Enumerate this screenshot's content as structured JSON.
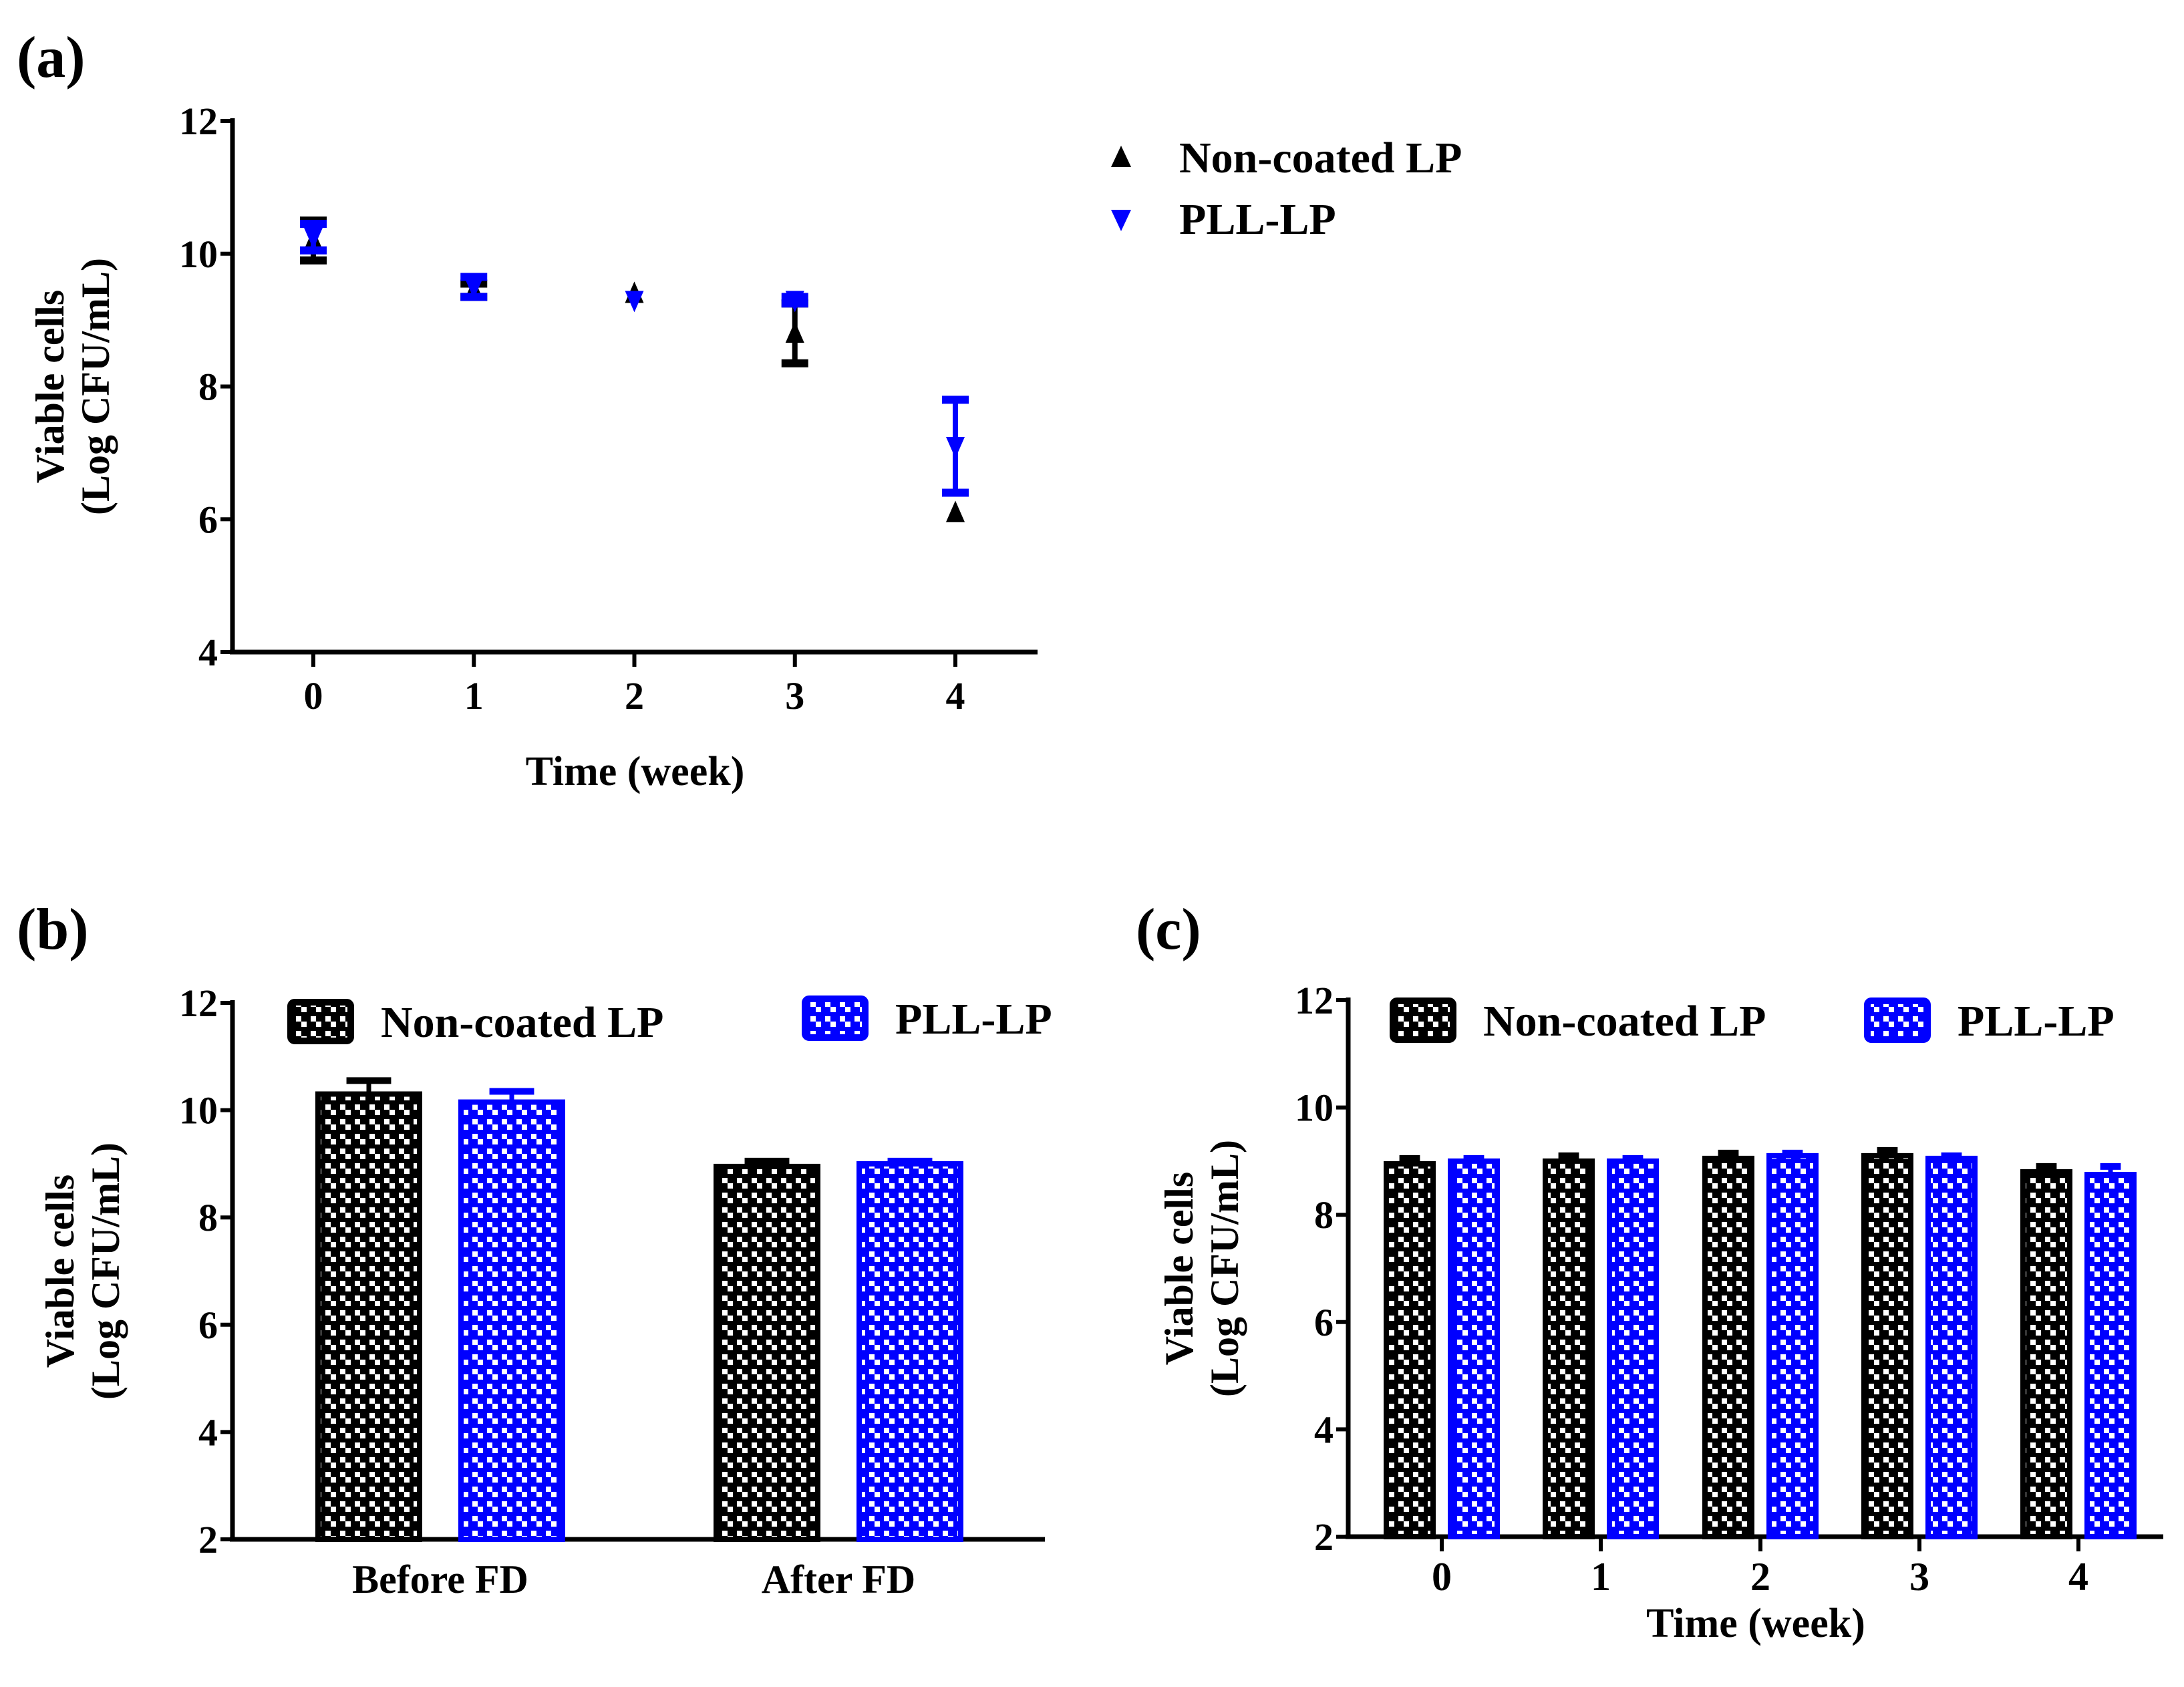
{
  "colors": {
    "noncoated": "#000000",
    "pll": "#0000ff"
  },
  "chart_data": [
    {
      "panel": "(a)",
      "type": "scatter",
      "xlabel": "Time (week)",
      "ylabel": [
        "Viable cells",
        "(Log CFU/mL)"
      ],
      "x": [
        0,
        1,
        2,
        3,
        4
      ],
      "xticks": [
        "0",
        "1",
        "2",
        "3",
        "4"
      ],
      "ylim": [
        4,
        12
      ],
      "yticks": [
        "4",
        "6",
        "8",
        "10",
        "12"
      ],
      "legend_position": "top-right outside",
      "series": [
        {
          "name": "Non-coated LP",
          "marker": "triangle-up",
          "values": [
            10.2,
            9.45,
            9.4,
            8.8,
            6.1
          ],
          "errors": [
            0.3,
            0.1,
            0.0,
            0.45,
            0.0
          ]
        },
        {
          "name": "PLL-LP",
          "marker": "triangle-down",
          "values": [
            10.25,
            9.5,
            9.3,
            9.3,
            7.1
          ],
          "errors": [
            0.2,
            0.15,
            0.0,
            0.05,
            0.7
          ]
        }
      ]
    },
    {
      "panel": "(b)",
      "type": "bar",
      "xlabel": "",
      "ylabel": [
        "Viable cells",
        "(Log CFU/mL)"
      ],
      "categories": [
        "Before FD",
        "After FD"
      ],
      "ylim": [
        2,
        12
      ],
      "yticks": [
        "2",
        "4",
        "6",
        "8",
        "10",
        "12"
      ],
      "legend_position": "top",
      "series": [
        {
          "name": "Non-coated LP",
          "values": [
            10.3,
            8.95
          ],
          "errors": [
            0.25,
            0.1
          ]
        },
        {
          "name": "PLL-LP",
          "values": [
            10.15,
            9.0
          ],
          "errors": [
            0.2,
            0.05
          ]
        }
      ]
    },
    {
      "panel": "(c)",
      "type": "bar",
      "xlabel": "Time (week)",
      "ylabel": [
        "Viable cells",
        "(Log CFU/mL)"
      ],
      "categories": [
        "0",
        "1",
        "2",
        "3",
        "4"
      ],
      "ylim": [
        2,
        12
      ],
      "yticks": [
        "2",
        "4",
        "6",
        "8",
        "10",
        "12"
      ],
      "legend_position": "top",
      "series": [
        {
          "name": "Non-coated LP",
          "values": [
            8.95,
            9.0,
            9.05,
            9.1,
            8.8
          ],
          "errors": [
            0.1,
            0.1,
            0.1,
            0.1,
            0.1
          ]
        },
        {
          "name": "PLL-LP",
          "values": [
            9.0,
            9.0,
            9.1,
            9.05,
            8.75
          ],
          "errors": [
            0.05,
            0.05,
            0.05,
            0.05,
            0.15
          ]
        }
      ]
    }
  ]
}
